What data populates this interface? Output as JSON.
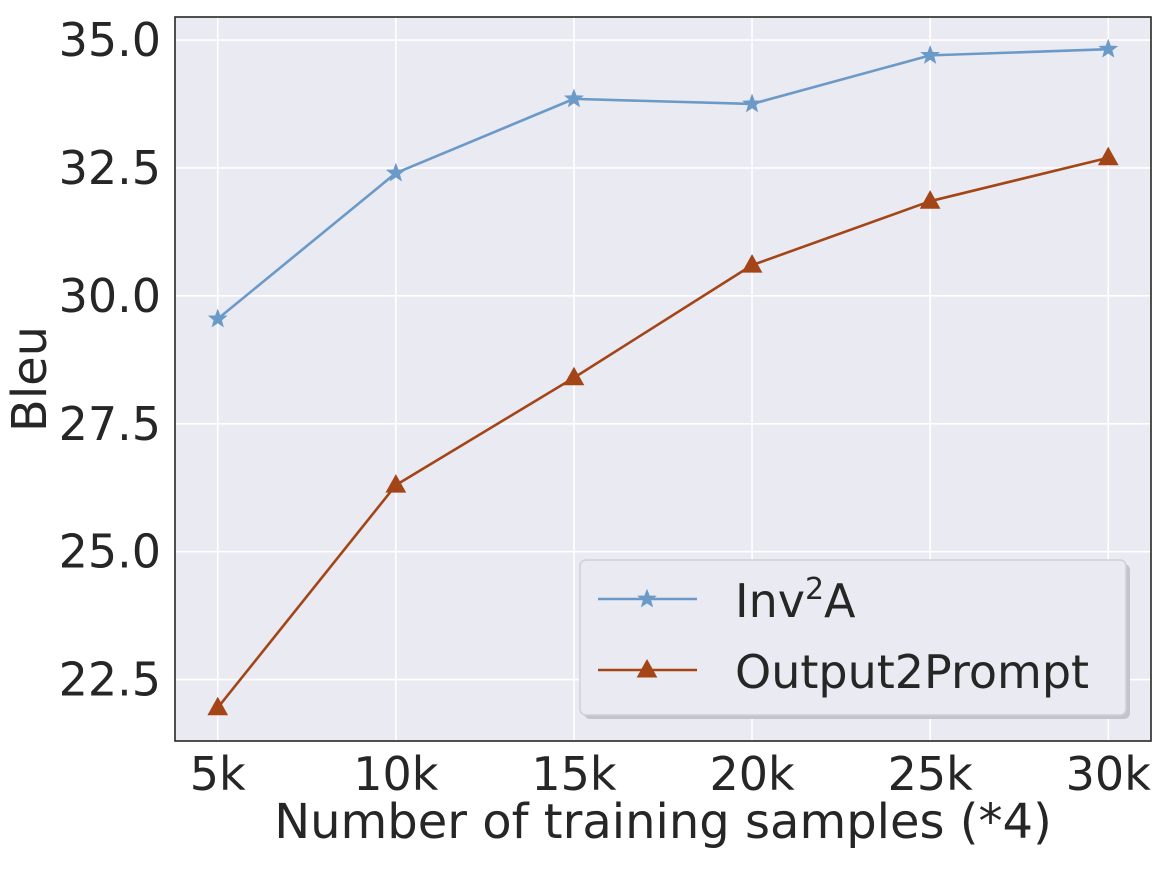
{
  "chart_data": {
    "type": "line",
    "title": "",
    "xlabel": "Number of training samples (*4)",
    "ylabel": "Bleu",
    "categories": [
      "5k",
      "10k",
      "15k",
      "20k",
      "25k",
      "30k"
    ],
    "x": [
      5,
      10,
      15,
      20,
      25,
      30
    ],
    "xlim": [
      3.8,
      31.2
    ],
    "ylim": [
      21.3,
      35.45
    ],
    "yticks": [
      22.5,
      25.0,
      27.5,
      30.0,
      32.5,
      35.0
    ],
    "ytick_labels": [
      "22.5",
      "25.0",
      "27.5",
      "30.0",
      "32.5",
      "35.0"
    ],
    "grid": true,
    "legend_position": "lower-right",
    "series": [
      {
        "name": "Inv",
        "name_sup": "2",
        "name_suffix": "A",
        "marker": "star",
        "color": "#6b9ac8",
        "values": [
          29.55,
          32.4,
          33.85,
          33.75,
          34.7,
          34.82
        ]
      },
      {
        "name": "Output2Prompt",
        "marker": "triangle",
        "color": "#a34517",
        "values": [
          21.95,
          26.3,
          28.4,
          30.6,
          31.85,
          32.7
        ]
      }
    ]
  }
}
